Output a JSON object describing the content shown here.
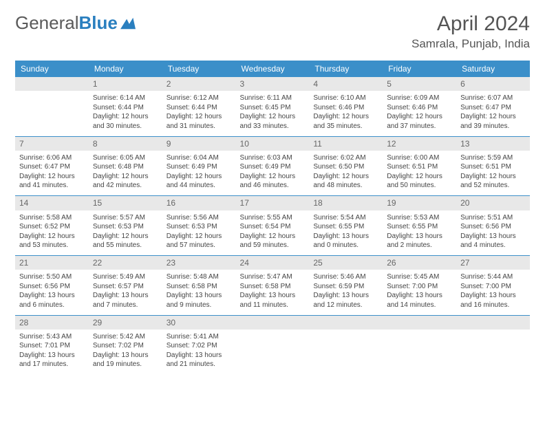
{
  "brand": {
    "name_part1": "General",
    "name_part2": "Blue"
  },
  "title": "April 2024",
  "location": "Samrala, Punjab, India",
  "colors": {
    "header_bg": "#3b8fc9",
    "header_text": "#ffffff",
    "daynum_bg": "#e8e8e8",
    "border": "#3b8fc9",
    "text": "#444444",
    "brand_gray": "#5a5a5a",
    "brand_blue": "#2a7fbf"
  },
  "day_headers": [
    "Sunday",
    "Monday",
    "Tuesday",
    "Wednesday",
    "Thursday",
    "Friday",
    "Saturday"
  ],
  "weeks": [
    {
      "nums": [
        "",
        "1",
        "2",
        "3",
        "4",
        "5",
        "6"
      ],
      "cells": [
        null,
        {
          "sunrise": "Sunrise: 6:14 AM",
          "sunset": "Sunset: 6:44 PM",
          "day1": "Daylight: 12 hours",
          "day2": "and 30 minutes."
        },
        {
          "sunrise": "Sunrise: 6:12 AM",
          "sunset": "Sunset: 6:44 PM",
          "day1": "Daylight: 12 hours",
          "day2": "and 31 minutes."
        },
        {
          "sunrise": "Sunrise: 6:11 AM",
          "sunset": "Sunset: 6:45 PM",
          "day1": "Daylight: 12 hours",
          "day2": "and 33 minutes."
        },
        {
          "sunrise": "Sunrise: 6:10 AM",
          "sunset": "Sunset: 6:46 PM",
          "day1": "Daylight: 12 hours",
          "day2": "and 35 minutes."
        },
        {
          "sunrise": "Sunrise: 6:09 AM",
          "sunset": "Sunset: 6:46 PM",
          "day1": "Daylight: 12 hours",
          "day2": "and 37 minutes."
        },
        {
          "sunrise": "Sunrise: 6:07 AM",
          "sunset": "Sunset: 6:47 PM",
          "day1": "Daylight: 12 hours",
          "day2": "and 39 minutes."
        }
      ]
    },
    {
      "nums": [
        "7",
        "8",
        "9",
        "10",
        "11",
        "12",
        "13"
      ],
      "cells": [
        {
          "sunrise": "Sunrise: 6:06 AM",
          "sunset": "Sunset: 6:47 PM",
          "day1": "Daylight: 12 hours",
          "day2": "and 41 minutes."
        },
        {
          "sunrise": "Sunrise: 6:05 AM",
          "sunset": "Sunset: 6:48 PM",
          "day1": "Daylight: 12 hours",
          "day2": "and 42 minutes."
        },
        {
          "sunrise": "Sunrise: 6:04 AM",
          "sunset": "Sunset: 6:49 PM",
          "day1": "Daylight: 12 hours",
          "day2": "and 44 minutes."
        },
        {
          "sunrise": "Sunrise: 6:03 AM",
          "sunset": "Sunset: 6:49 PM",
          "day1": "Daylight: 12 hours",
          "day2": "and 46 minutes."
        },
        {
          "sunrise": "Sunrise: 6:02 AM",
          "sunset": "Sunset: 6:50 PM",
          "day1": "Daylight: 12 hours",
          "day2": "and 48 minutes."
        },
        {
          "sunrise": "Sunrise: 6:00 AM",
          "sunset": "Sunset: 6:51 PM",
          "day1": "Daylight: 12 hours",
          "day2": "and 50 minutes."
        },
        {
          "sunrise": "Sunrise: 5:59 AM",
          "sunset": "Sunset: 6:51 PM",
          "day1": "Daylight: 12 hours",
          "day2": "and 52 minutes."
        }
      ]
    },
    {
      "nums": [
        "14",
        "15",
        "16",
        "17",
        "18",
        "19",
        "20"
      ],
      "cells": [
        {
          "sunrise": "Sunrise: 5:58 AM",
          "sunset": "Sunset: 6:52 PM",
          "day1": "Daylight: 12 hours",
          "day2": "and 53 minutes."
        },
        {
          "sunrise": "Sunrise: 5:57 AM",
          "sunset": "Sunset: 6:53 PM",
          "day1": "Daylight: 12 hours",
          "day2": "and 55 minutes."
        },
        {
          "sunrise": "Sunrise: 5:56 AM",
          "sunset": "Sunset: 6:53 PM",
          "day1": "Daylight: 12 hours",
          "day2": "and 57 minutes."
        },
        {
          "sunrise": "Sunrise: 5:55 AM",
          "sunset": "Sunset: 6:54 PM",
          "day1": "Daylight: 12 hours",
          "day2": "and 59 minutes."
        },
        {
          "sunrise": "Sunrise: 5:54 AM",
          "sunset": "Sunset: 6:55 PM",
          "day1": "Daylight: 13 hours",
          "day2": "and 0 minutes."
        },
        {
          "sunrise": "Sunrise: 5:53 AM",
          "sunset": "Sunset: 6:55 PM",
          "day1": "Daylight: 13 hours",
          "day2": "and 2 minutes."
        },
        {
          "sunrise": "Sunrise: 5:51 AM",
          "sunset": "Sunset: 6:56 PM",
          "day1": "Daylight: 13 hours",
          "day2": "and 4 minutes."
        }
      ]
    },
    {
      "nums": [
        "21",
        "22",
        "23",
        "24",
        "25",
        "26",
        "27"
      ],
      "cells": [
        {
          "sunrise": "Sunrise: 5:50 AM",
          "sunset": "Sunset: 6:56 PM",
          "day1": "Daylight: 13 hours",
          "day2": "and 6 minutes."
        },
        {
          "sunrise": "Sunrise: 5:49 AM",
          "sunset": "Sunset: 6:57 PM",
          "day1": "Daylight: 13 hours",
          "day2": "and 7 minutes."
        },
        {
          "sunrise": "Sunrise: 5:48 AM",
          "sunset": "Sunset: 6:58 PM",
          "day1": "Daylight: 13 hours",
          "day2": "and 9 minutes."
        },
        {
          "sunrise": "Sunrise: 5:47 AM",
          "sunset": "Sunset: 6:58 PM",
          "day1": "Daylight: 13 hours",
          "day2": "and 11 minutes."
        },
        {
          "sunrise": "Sunrise: 5:46 AM",
          "sunset": "Sunset: 6:59 PM",
          "day1": "Daylight: 13 hours",
          "day2": "and 12 minutes."
        },
        {
          "sunrise": "Sunrise: 5:45 AM",
          "sunset": "Sunset: 7:00 PM",
          "day1": "Daylight: 13 hours",
          "day2": "and 14 minutes."
        },
        {
          "sunrise": "Sunrise: 5:44 AM",
          "sunset": "Sunset: 7:00 PM",
          "day1": "Daylight: 13 hours",
          "day2": "and 16 minutes."
        }
      ]
    },
    {
      "nums": [
        "28",
        "29",
        "30",
        "",
        "",
        "",
        ""
      ],
      "cells": [
        {
          "sunrise": "Sunrise: 5:43 AM",
          "sunset": "Sunset: 7:01 PM",
          "day1": "Daylight: 13 hours",
          "day2": "and 17 minutes."
        },
        {
          "sunrise": "Sunrise: 5:42 AM",
          "sunset": "Sunset: 7:02 PM",
          "day1": "Daylight: 13 hours",
          "day2": "and 19 minutes."
        },
        {
          "sunrise": "Sunrise: 5:41 AM",
          "sunset": "Sunset: 7:02 PM",
          "day1": "Daylight: 13 hours",
          "day2": "and 21 minutes."
        },
        null,
        null,
        null,
        null
      ]
    }
  ]
}
